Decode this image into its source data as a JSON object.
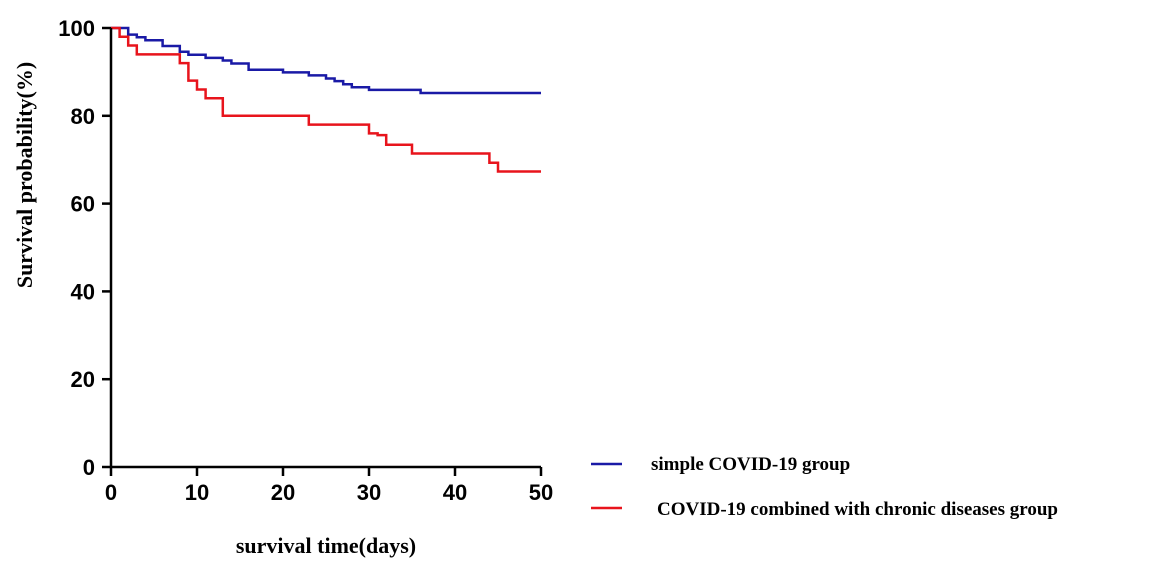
{
  "chart_data": {
    "type": "line",
    "title": "",
    "xlabel": "survival time(days)",
    "ylabel": "Survival probability(%)",
    "xlim": [
      0,
      50
    ],
    "ylim": [
      0,
      100
    ],
    "xticks": [
      "0",
      "10",
      "20",
      "30",
      "40",
      "50"
    ],
    "yticks": [
      "0",
      "20",
      "40",
      "60",
      "80",
      "100"
    ],
    "grid": false,
    "legend_position": "bottom-right",
    "step": true,
    "series": [
      {
        "name": "simple COVID-19 group",
        "color": "#1a1aa6",
        "x": [
          0,
          2,
          3,
          4,
          6,
          8,
          9,
          11,
          13,
          14,
          16,
          20,
          23,
          25,
          26,
          27,
          28,
          30,
          36,
          50
        ],
        "y": [
          100,
          98.5,
          97.9,
          97.2,
          95.9,
          94.6,
          93.9,
          93.2,
          92.6,
          91.9,
          90.5,
          89.9,
          89.2,
          88.5,
          87.9,
          87.2,
          86.5,
          85.9,
          85.2,
          85.2
        ]
      },
      {
        "name": "COVID-19 combined with chronic diseases group",
        "color": "#e8141c",
        "x": [
          0,
          1,
          2,
          3,
          8,
          9,
          10,
          11,
          13,
          23,
          30,
          31,
          32,
          35,
          44,
          45,
          46,
          50
        ],
        "y": [
          100,
          98,
          96,
          94,
          92,
          88,
          86,
          84,
          80,
          78,
          76,
          75.6,
          73.4,
          71.4,
          69.3,
          67.3,
          67.3,
          67.3
        ]
      }
    ]
  }
}
